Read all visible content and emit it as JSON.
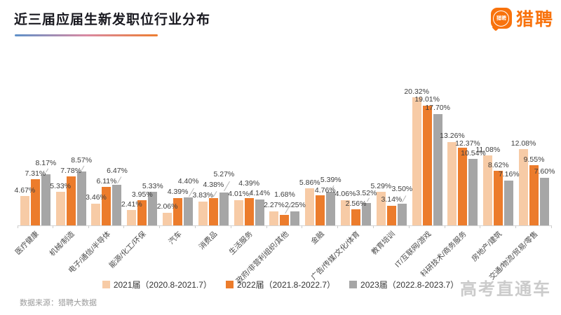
{
  "header": {
    "title": "近三届应届生新发职位行业分布",
    "underline_gradient": [
      "#5e91c9",
      "#d989a2",
      "#ed7d31"
    ],
    "logo_text": "猎聘",
    "logo_icon_text": "猎聘",
    "brand_orange": "#f8720c"
  },
  "chart_data": {
    "type": "bar",
    "title": "近三届应届生新发职位行业分布",
    "unit": "%",
    "value_labels": true,
    "grid": false,
    "legend_position": "bottom",
    "ylim": [
      0,
      22
    ],
    "categories": [
      "医疗健康",
      "机械/制造",
      "电子/通信/半导体",
      "能源/化工/环保",
      "汽车",
      "消费品",
      "生活服务",
      "政府/非营利组织/其他",
      "金融",
      "广告/传媒/文化/体育",
      "教育培训",
      "IT/互联网/游戏",
      "科研技术/商务服务",
      "房地产/建筑",
      "交通/物流/贸易/零售"
    ],
    "series": [
      {
        "name": "2021届（2020.8-2021.7）",
        "color": "#f7cba6",
        "values": [
          4.67,
          5.33,
          3.46,
          2.41,
          2.06,
          3.83,
          4.01,
          2.27,
          5.86,
          4.06,
          5.29,
          20.32,
          13.26,
          11.08,
          12.08
        ]
      },
      {
        "name": "2022届（2021.8-2022.7）",
        "color": "#ec7c2c",
        "values": [
          7.31,
          7.78,
          6.11,
          3.95,
          4.39,
          4.38,
          4.39,
          1.68,
          4.76,
          2.56,
          3.14,
          19.01,
          12.37,
          8.62,
          9.55
        ]
      },
      {
        "name": "2023届（2022.8-2023.7）",
        "color": "#a6a6a6",
        "values": [
          8.17,
          8.57,
          6.47,
          5.33,
          4.4,
          5.27,
          4.14,
          2.25,
          5.39,
          3.52,
          3.5,
          17.7,
          10.54,
          7.16,
          7.6
        ]
      }
    ]
  },
  "footer": {
    "source": "数据来源：猎聘大数据",
    "watermark": "高考直通车"
  }
}
